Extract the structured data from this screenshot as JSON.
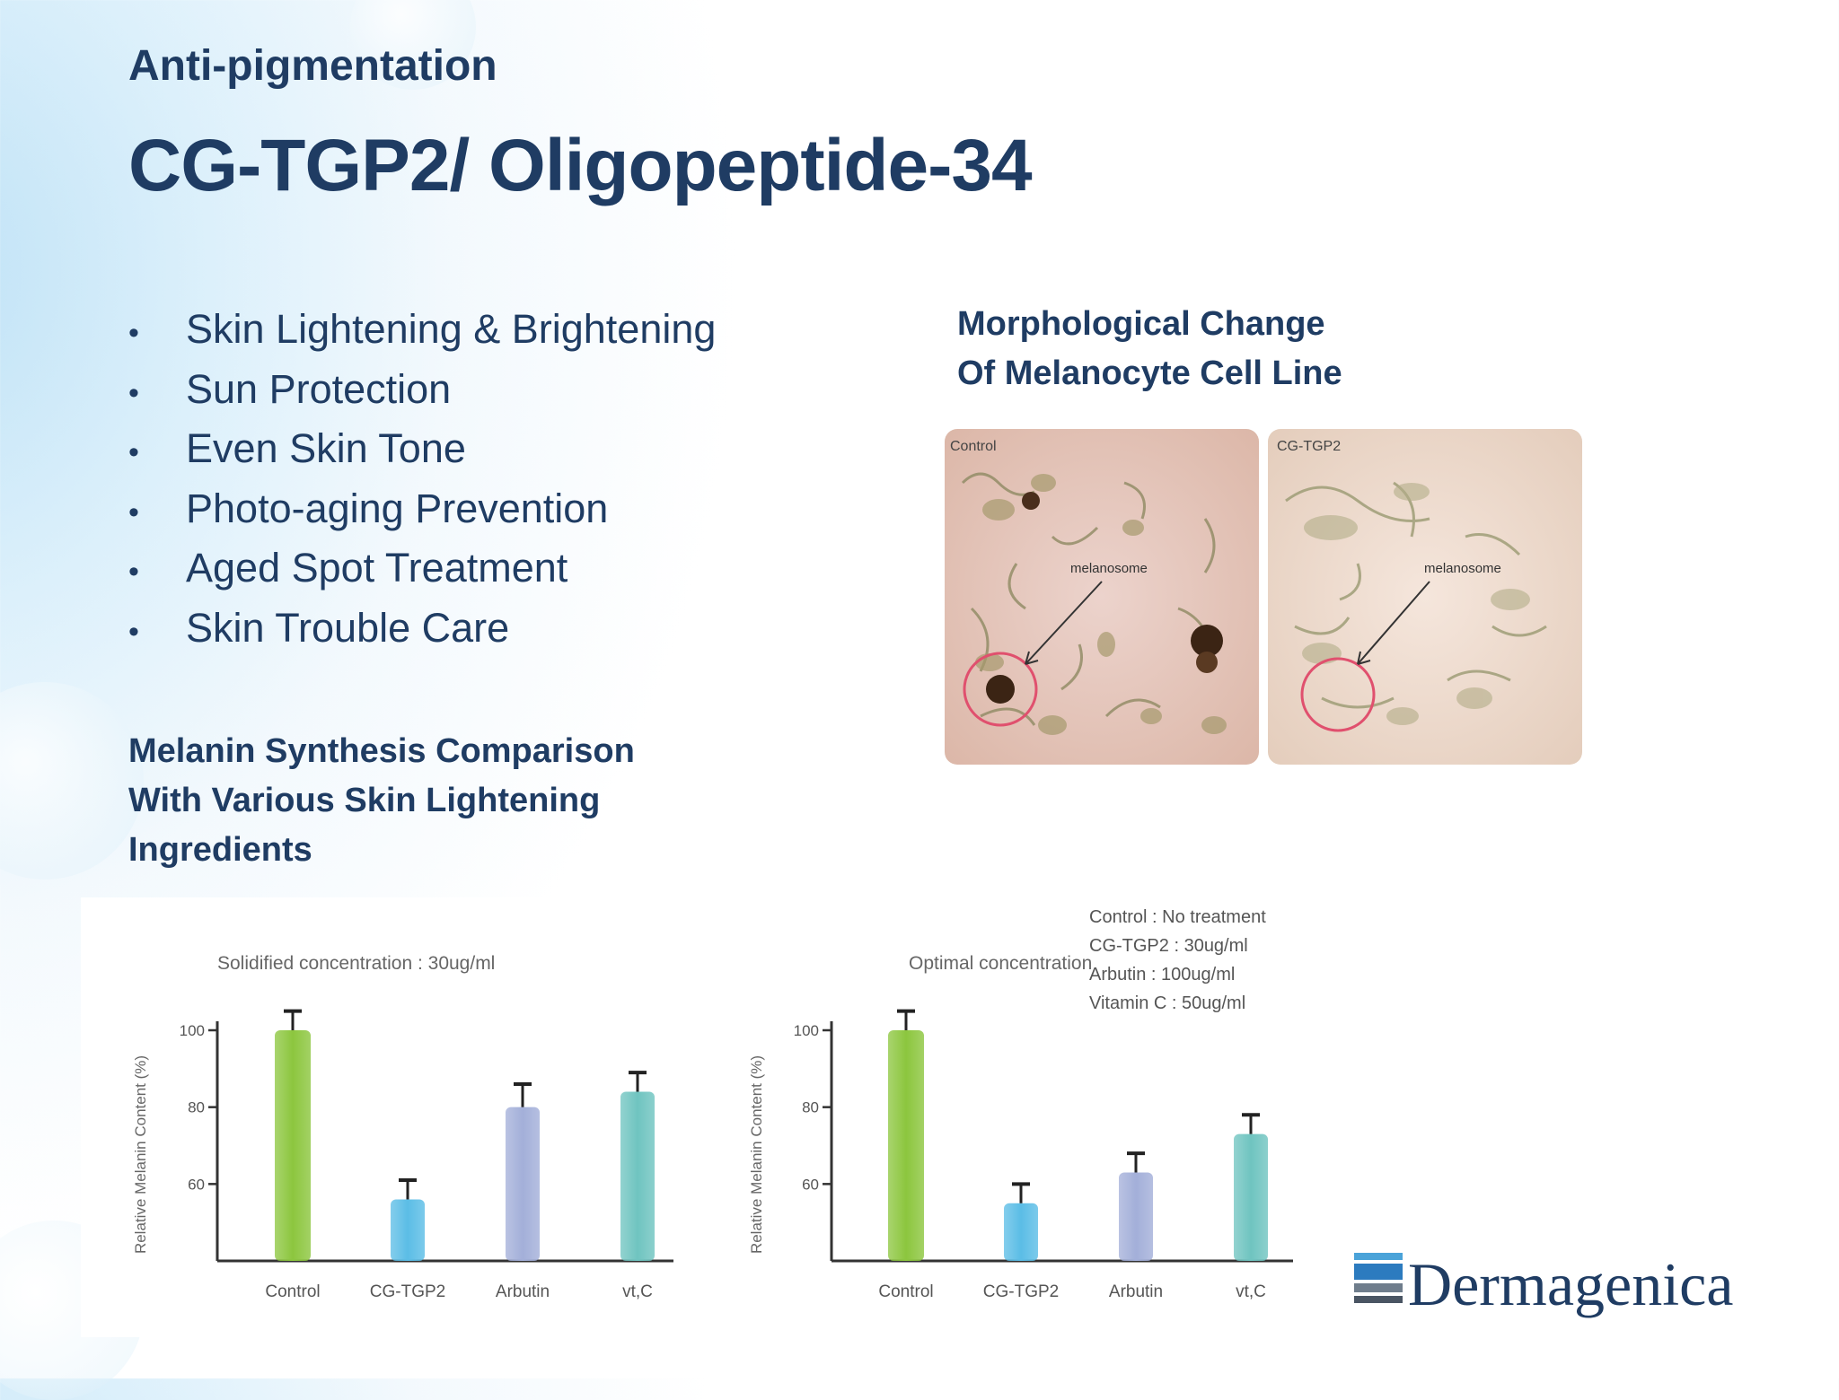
{
  "slide": {
    "overline": "Anti-pigmentation",
    "title": "CG-TGP2/ Oligopeptide-34",
    "bullet_char": "•",
    "bullets": [
      "Skin Lightening & Brightening",
      "Sun Protection",
      "Even Skin Tone",
      "Photo-aging Prevention",
      "Aged Spot Treatment",
      "Skin Trouble Care"
    ]
  },
  "morphology": {
    "caption_lines": [
      "Morphological Change",
      "Of Melanocyte Cell Line"
    ],
    "panels": [
      {
        "label": "Control",
        "annotation": "melanosome"
      },
      {
        "label": "CG-TGP2",
        "annotation": "melanosome"
      }
    ]
  },
  "melanin": {
    "caption_lines": [
      "Melanin Synthesis Comparison",
      "With Various Skin Lightening",
      "Ingredients"
    ]
  },
  "legend_notes": [
    "Control : No treatment",
    "CG-TGP2 : 30ug/ml",
    "Arbutin : 100ug/ml",
    "Vitamin C : 50ug/ml"
  ],
  "chart_data": [
    {
      "type": "bar",
      "title": "Solidified concentration : 30ug/ml",
      "ylabel": "Relative Melanin Content (%)",
      "categories": [
        "Control",
        "CG-TGP2",
        "Arbutin",
        "vt,C"
      ],
      "values": [
        100,
        56,
        80,
        84
      ],
      "errors": [
        5,
        5,
        6,
        5
      ],
      "yticks": [
        60,
        80,
        100
      ],
      "ylim": [
        40,
        100
      ],
      "colors": [
        "#8cc63e",
        "#5bbde6",
        "#a3afd9",
        "#6fc4c0"
      ]
    },
    {
      "type": "bar",
      "title": "Optimal concentration",
      "ylabel": "Relative Melanin Content (%)",
      "categories": [
        "Control",
        "CG-TGP2",
        "Arbutin",
        "vt,C"
      ],
      "values": [
        100,
        55,
        63,
        73
      ],
      "errors": [
        5,
        5,
        5,
        5
      ],
      "yticks": [
        60,
        80,
        100
      ],
      "ylim": [
        40,
        100
      ],
      "colors": [
        "#8cc63e",
        "#5bbde6",
        "#a3afd9",
        "#6fc4c0"
      ]
    }
  ],
  "brand": {
    "name": "Dermagenica",
    "color": "#1f3c63",
    "accent": "#4aa3d9"
  }
}
